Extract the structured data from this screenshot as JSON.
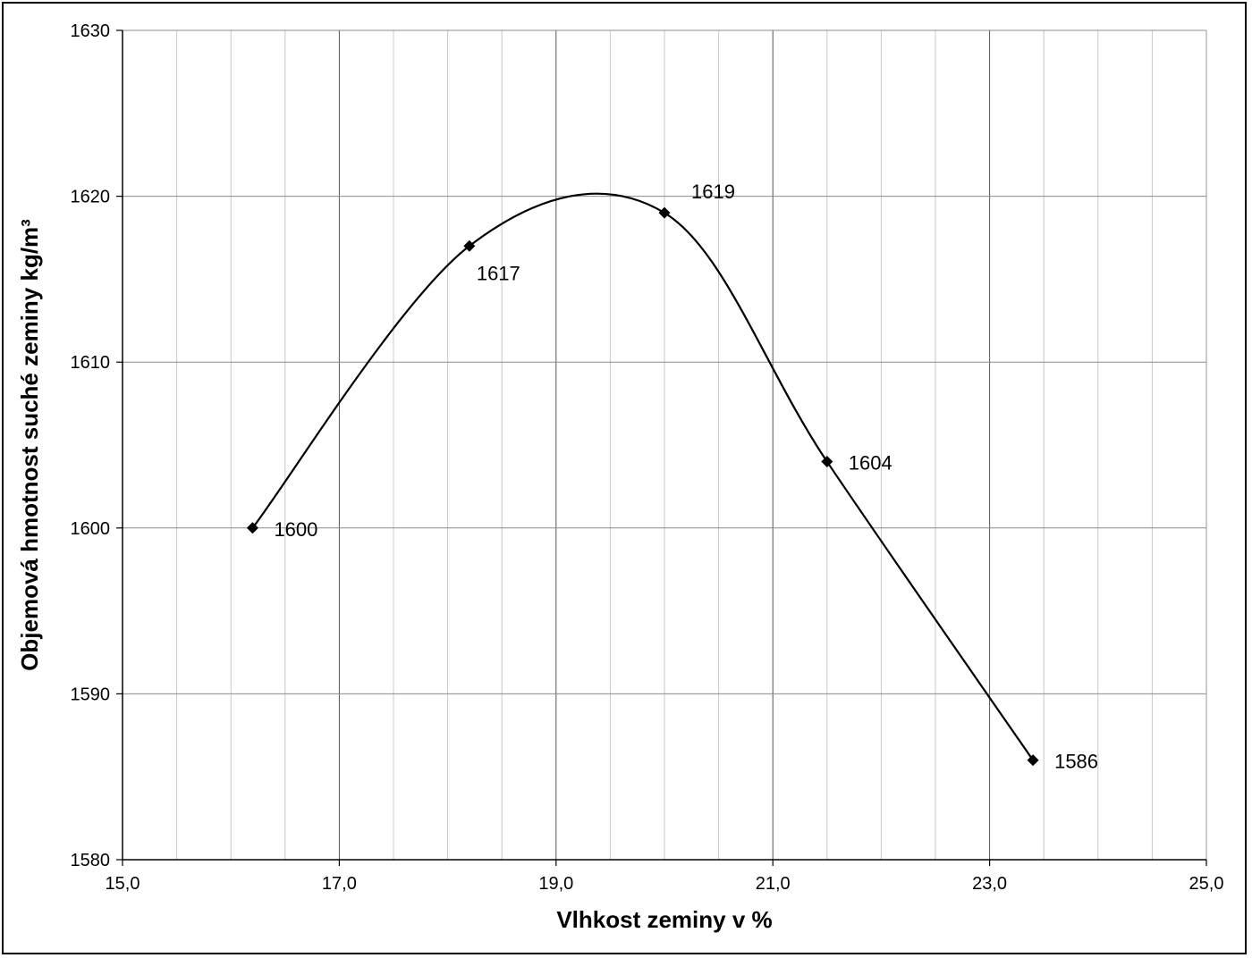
{
  "chart_data": {
    "type": "scatter",
    "title": "",
    "xlabel": "Vlhkost zeminy v %",
    "ylabel": "Objemová hmotnost suché zeminy  kg/m³",
    "xlim": [
      15.0,
      25.0
    ],
    "ylim": [
      1580,
      1630
    ],
    "x_ticks": [
      15.0,
      17.0,
      19.0,
      21.0,
      23.0,
      25.0
    ],
    "x_tick_labels": [
      "15,0",
      "17,0",
      "19,0",
      "21,0",
      "23,0",
      "25,0"
    ],
    "x_minor_step": 0.5,
    "y_ticks": [
      1580,
      1590,
      1600,
      1610,
      1620,
      1630
    ],
    "y_tick_labels": [
      "1580",
      "1590",
      "1600",
      "1610",
      "1620",
      "1630"
    ],
    "grid": true,
    "smooth_line": true,
    "marker": "diamond",
    "line_color": "#000000",
    "series": [
      {
        "x": [
          16.2,
          18.2,
          20.0,
          21.5,
          23.4
        ],
        "y": [
          1600,
          1617,
          1619,
          1604,
          1586
        ],
        "labels": [
          "1600",
          "1617",
          "1619",
          "1604",
          "1586"
        ]
      }
    ]
  }
}
